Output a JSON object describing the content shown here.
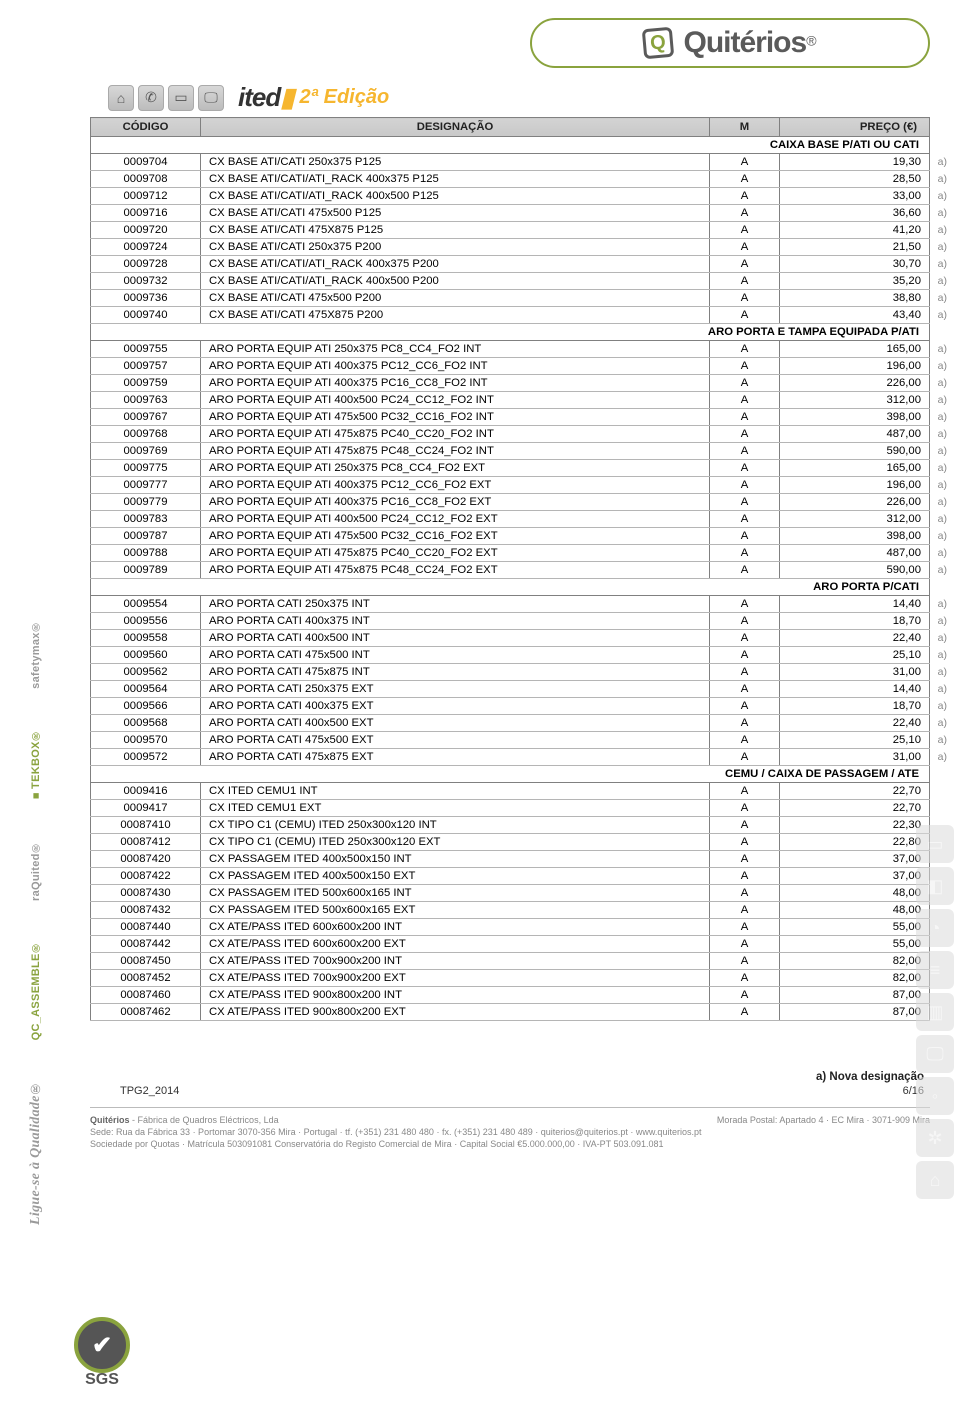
{
  "brand": {
    "name": "Quitérios",
    "registered": "®"
  },
  "subheader": {
    "ited": "ited",
    "edicao": "2ª Edição"
  },
  "columns": {
    "code": "CÓDIGO",
    "desig": "DESIGNAÇÃO",
    "m": "M",
    "price": "PREÇO (€)"
  },
  "sections": [
    {
      "title": "CAIXA BASE P/ATI OU CATI",
      "rows": [
        {
          "c": "0009704",
          "d": "CX BASE ATI/CATI 250x375 P125",
          "m": "A",
          "p": "19,30",
          "a": true
        },
        {
          "c": "0009708",
          "d": "CX BASE ATI/CATI/ATI_RACK 400x375 P125",
          "m": "A",
          "p": "28,50",
          "a": true
        },
        {
          "c": "0009712",
          "d": "CX BASE ATI/CATI/ATI_RACK 400x500 P125",
          "m": "A",
          "p": "33,00",
          "a": true
        },
        {
          "c": "0009716",
          "d": "CX BASE ATI/CATI 475x500 P125",
          "m": "A",
          "p": "36,60",
          "a": true
        },
        {
          "c": "0009720",
          "d": "CX BASE ATI/CATI 475X875 P125",
          "m": "A",
          "p": "41,20",
          "a": true
        },
        {
          "c": "0009724",
          "d": "CX BASE ATI/CATI 250x375 P200",
          "m": "A",
          "p": "21,50",
          "a": true
        },
        {
          "c": "0009728",
          "d": "CX BASE ATI/CATI/ATI_RACK 400x375 P200",
          "m": "A",
          "p": "30,70",
          "a": true
        },
        {
          "c": "0009732",
          "d": "CX BASE ATI/CATI/ATI_RACK 400x500 P200",
          "m": "A",
          "p": "35,20",
          "a": true
        },
        {
          "c": "0009736",
          "d": "CX BASE ATI/CATI 475x500 P200",
          "m": "A",
          "p": "38,80",
          "a": true
        },
        {
          "c": "0009740",
          "d": "CX BASE ATI/CATI 475X875 P200",
          "m": "A",
          "p": "43,40",
          "a": true
        }
      ]
    },
    {
      "title": "ARO PORTA E TAMPA EQUIPADA P/ATI",
      "rows": [
        {
          "c": "0009755",
          "d": "ARO PORTA EQUIP ATI 250x375 PC8_CC4_FO2 INT",
          "m": "A",
          "p": "165,00",
          "a": true
        },
        {
          "c": "0009757",
          "d": "ARO PORTA EQUIP ATI 400x375 PC12_CC6_FO2 INT",
          "m": "A",
          "p": "196,00",
          "a": true
        },
        {
          "c": "0009759",
          "d": "ARO PORTA EQUIP ATI 400x375 PC16_CC8_FO2 INT",
          "m": "A",
          "p": "226,00",
          "a": true
        },
        {
          "c": "0009763",
          "d": "ARO PORTA EQUIP ATI 400x500 PC24_CC12_FO2 INT",
          "m": "A",
          "p": "312,00",
          "a": true
        },
        {
          "c": "0009767",
          "d": "ARO PORTA EQUIP ATI 475x500 PC32_CC16_FO2 INT",
          "m": "A",
          "p": "398,00",
          "a": true
        },
        {
          "c": "0009768",
          "d": "ARO PORTA EQUIP ATI 475x875 PC40_CC20_FO2 INT",
          "m": "A",
          "p": "487,00",
          "a": true
        },
        {
          "c": "0009769",
          "d": "ARO PORTA EQUIP ATI 475x875 PC48_CC24_FO2 INT",
          "m": "A",
          "p": "590,00",
          "a": true
        },
        {
          "c": "0009775",
          "d": "ARO PORTA EQUIP ATI 250x375 PC8_CC4_FO2 EXT",
          "m": "A",
          "p": "165,00",
          "a": true
        },
        {
          "c": "0009777",
          "d": "ARO PORTA EQUIP ATI 400x375 PC12_CC6_FO2 EXT",
          "m": "A",
          "p": "196,00",
          "a": true
        },
        {
          "c": "0009779",
          "d": "ARO PORTA EQUIP ATI 400x375 PC16_CC8_FO2  EXT",
          "m": "A",
          "p": "226,00",
          "a": true
        },
        {
          "c": "0009783",
          "d": "ARO PORTA EQUIP ATI 400x500 PC24_CC12_FO2 EXT",
          "m": "A",
          "p": "312,00",
          "a": true
        },
        {
          "c": "0009787",
          "d": "ARO PORTA EQUIP ATI 475x500 PC32_CC16_FO2 EXT",
          "m": "A",
          "p": "398,00",
          "a": true
        },
        {
          "c": "0009788",
          "d": "ARO PORTA EQUIP ATI 475x875 PC40_CC20_FO2 EXT",
          "m": "A",
          "p": "487,00",
          "a": true
        },
        {
          "c": "0009789",
          "d": "ARO PORTA EQUIP ATI 475x875 PC48_CC24_FO2 EXT",
          "m": "A",
          "p": "590,00",
          "a": true
        }
      ]
    },
    {
      "title": "ARO PORTA P/CATI",
      "rows": [
        {
          "c": "0009554",
          "d": "ARO PORTA CATI 250x375 INT",
          "m": "A",
          "p": "14,40",
          "a": true
        },
        {
          "c": "0009556",
          "d": "ARO PORTA CATI 400x375 INT",
          "m": "A",
          "p": "18,70",
          "a": true
        },
        {
          "c": "0009558",
          "d": "ARO PORTA CATI 400x500 INT",
          "m": "A",
          "p": "22,40",
          "a": true
        },
        {
          "c": "0009560",
          "d": "ARO PORTA CATI 475x500 INT",
          "m": "A",
          "p": "25,10",
          "a": true
        },
        {
          "c": "0009562",
          "d": "ARO PORTA CATI 475x875 INT",
          "m": "A",
          "p": "31,00",
          "a": true
        },
        {
          "c": "0009564",
          "d": "ARO PORTA CATI 250x375 EXT",
          "m": "A",
          "p": "14,40",
          "a": true
        },
        {
          "c": "0009566",
          "d": "ARO PORTA CATI 400x375 EXT",
          "m": "A",
          "p": "18,70",
          "a": true
        },
        {
          "c": "0009568",
          "d": "ARO PORTA CATI 400x500 EXT",
          "m": "A",
          "p": "22,40",
          "a": true
        },
        {
          "c": "0009570",
          "d": "ARO PORTA CATI 475x500 EXT",
          "m": "A",
          "p": "25,10",
          "a": true
        },
        {
          "c": "0009572",
          "d": "ARO PORTA CATI 475x875 EXT",
          "m": "A",
          "p": "31,00",
          "a": true
        }
      ]
    },
    {
      "title": "CEMU / CAIXA DE PASSAGEM / ATE",
      "rows": [
        {
          "c": "0009416",
          "d": "CX ITED CEMU1 INT",
          "m": "A",
          "p": "22,70",
          "a": false
        },
        {
          "c": "0009417",
          "d": "CX ITED CEMU1 EXT",
          "m": "A",
          "p": "22,70",
          "a": false
        },
        {
          "c": "00087410",
          "d": "CX TIPO C1 (CEMU) ITED 250x300x120 INT",
          "m": "A",
          "p": "22,30",
          "a": false
        },
        {
          "c": "00087412",
          "d": "CX TIPO C1 (CEMU) ITED 250x300x120 EXT",
          "m": "A",
          "p": "22,80",
          "a": false
        },
        {
          "c": "00087420",
          "d": "CX PASSAGEM ITED 400x500x150 INT",
          "m": "A",
          "p": "37,00",
          "a": false
        },
        {
          "c": "00087422",
          "d": "CX PASSAGEM ITED 400x500x150 EXT",
          "m": "A",
          "p": "37,00",
          "a": false
        },
        {
          "c": "00087430",
          "d": "CX PASSAGEM ITED 500x600x165 INT",
          "m": "A",
          "p": "48,00",
          "a": false
        },
        {
          "c": "00087432",
          "d": "CX PASSAGEM ITED 500x600x165 EXT",
          "m": "A",
          "p": "48,00",
          "a": false
        },
        {
          "c": "00087440",
          "d": "CX ATE/PASS ITED 600x600x200 INT",
          "m": "A",
          "p": "55,00",
          "a": false
        },
        {
          "c": "00087442",
          "d": "CX ATE/PASS ITED 600x600x200 EXT",
          "m": "A",
          "p": "55,00",
          "a": false
        },
        {
          "c": "00087450",
          "d": "CX ATE/PASS ITED 700x900x200 INT",
          "m": "A",
          "p": "82,00",
          "a": false
        },
        {
          "c": "00087452",
          "d": "CX ATE/PASS ITED 700x900x200 EXT",
          "m": "A",
          "p": "82,00",
          "a": false
        },
        {
          "c": "00087460",
          "d": "CX ATE/PASS ITED 900x800x200 INT",
          "m": "A",
          "p": "87,00",
          "a": false
        },
        {
          "c": "00087462",
          "d": "CX ATE/PASS ITED 900x800x200 EXT",
          "m": "A",
          "p": "87,00",
          "a": false
        }
      ]
    }
  ],
  "legend": "a) Nova designação",
  "docref": "TPG2_2014",
  "page": "6/16",
  "side_brands": [
    "safetymax®",
    "■TEKBOX®",
    "raQuited®",
    "QC_ASSEMBLE®",
    "Ligue-se à Qualidade®"
  ],
  "footer": {
    "l1a": "Quitérios",
    "l1b": " - Fábrica de Quadros Eléctricos, Lda",
    "l1c": "Morada Postal: Apartado 4 · EC Mira · 3071-909 Mira",
    "l2": "Sede: Rua da Fábrica 33 · Portomar 3070-356 Mira · Portugal · tf. (+351) 231 480 480 · fx. (+351) 231 480 489 · quiterios@quiterios.pt · www.quiterios.pt",
    "l3": "Sociedade por Quotas · Matrícula 503091081 Conservatória do Registo Comercial de Mira · Capital Social €5.000.000,00 · IVA-PT 503.091.081"
  },
  "a_label": "a)"
}
